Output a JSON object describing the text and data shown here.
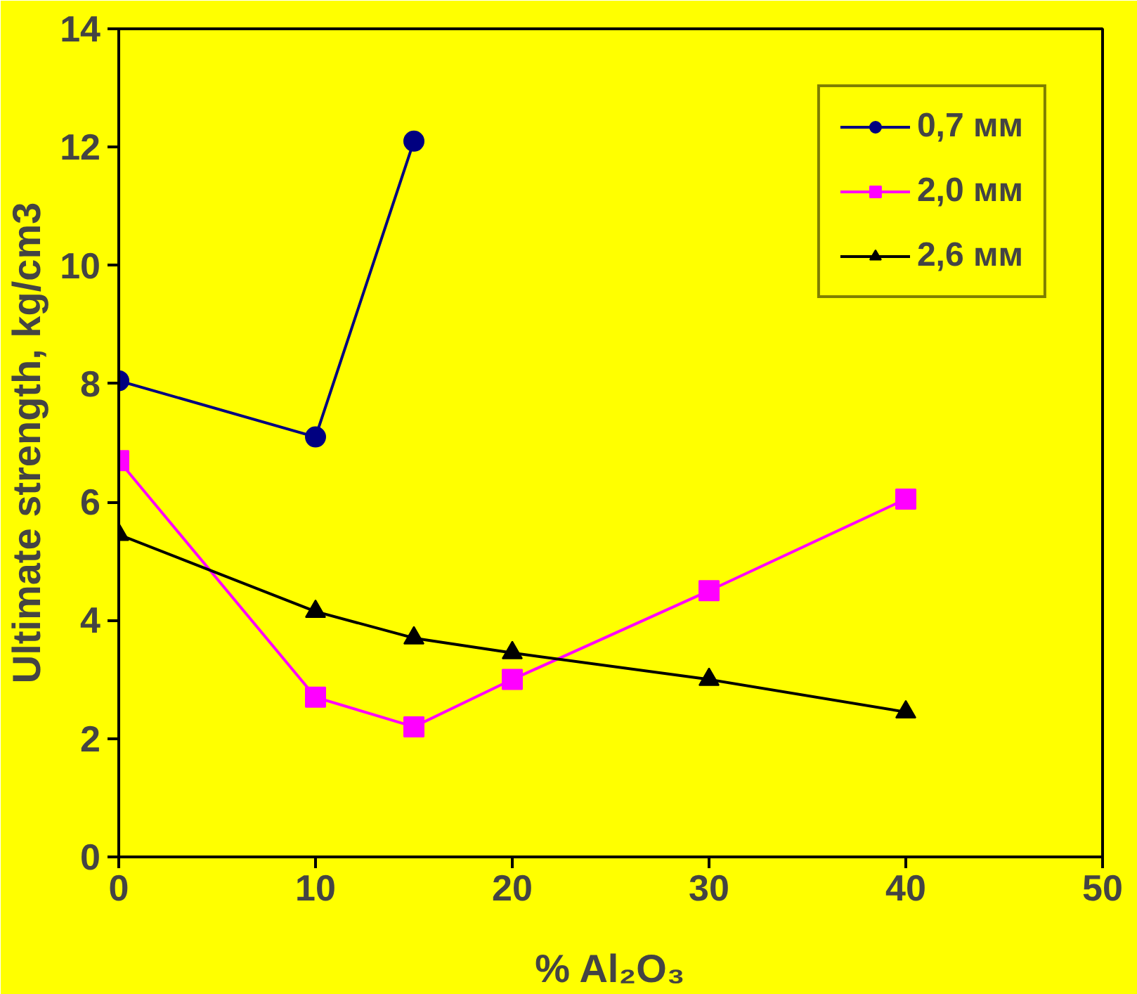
{
  "chart_data": {
    "type": "line",
    "xlabel": "% Al₂O₃",
    "ylabel": "Ultimate strength, kg/cm3",
    "xlim": [
      0,
      50
    ],
    "ylim": [
      0,
      14
    ],
    "xticks": [
      0,
      10,
      20,
      30,
      40,
      50
    ],
    "yticks": [
      0,
      2,
      4,
      6,
      8,
      10,
      12,
      14
    ],
    "grid": false,
    "legend": "top right",
    "line_style": "solid",
    "series": [
      {
        "name": "0,7 мм",
        "color": "#000080",
        "marker": "circle",
        "x": [
          0,
          10,
          15
        ],
        "values": [
          8.05,
          7.1,
          12.1
        ]
      },
      {
        "name": "2,0 мм",
        "color": "#ff00ff",
        "marker": "square",
        "x": [
          0,
          10,
          15,
          20,
          30,
          40
        ],
        "values": [
          6.7,
          2.7,
          2.2,
          3.0,
          4.5,
          6.05
        ]
      },
      {
        "name": "2,6 мм",
        "color": "#000000",
        "marker": "triangle",
        "x": [
          0,
          10,
          15,
          20,
          30,
          40
        ],
        "values": [
          5.45,
          4.15,
          3.7,
          3.45,
          3.0,
          2.45
        ]
      }
    ]
  }
}
